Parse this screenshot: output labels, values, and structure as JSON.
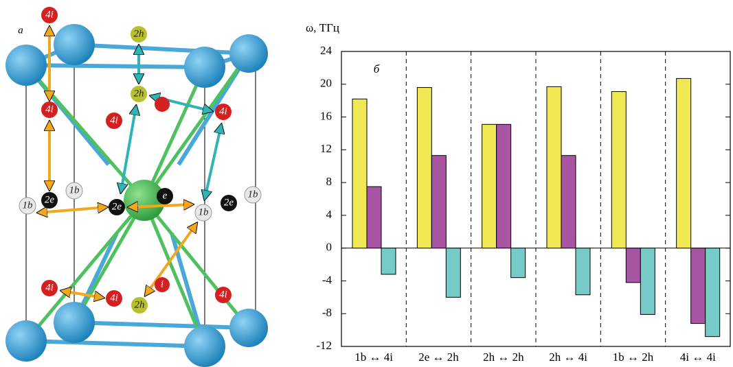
{
  "structure": {
    "panel_label": "a",
    "atoms": [
      "4i",
      "2h",
      "2h",
      "4i",
      "4i",
      "4i",
      "1b",
      "2e",
      "1b",
      "2e",
      "e",
      "1b",
      "2e",
      "1b",
      "4i",
      "4i",
      "i",
      "2h",
      "4i"
    ]
  },
  "chart_data": {
    "type": "bar",
    "title": "б",
    "y_label": "ω, ТГц",
    "categories": [
      "1b ↔ 4i",
      "2e ↔ 2h",
      "2h ↔ 2h",
      "2h ↔ 4i",
      "1b ↔ 2h",
      "4i ↔ 4i"
    ],
    "series": [
      {
        "color": "#f0e854",
        "values": [
          18.2,
          19.6,
          15.1,
          19.7,
          19.1,
          20.7
        ]
      },
      {
        "color": "#a855a3",
        "values": [
          7.5,
          11.3,
          15.1,
          11.3,
          -4.2,
          -9.2
        ]
      },
      {
        "color": "#76cbc8",
        "values": [
          -3.2,
          -6.0,
          -3.6,
          -5.7,
          -8.1,
          -10.8
        ]
      }
    ],
    "ylim": [
      -12,
      24
    ],
    "yticks": [
      -12,
      -8,
      -4,
      0,
      4,
      8,
      12,
      16,
      20,
      24
    ],
    "separators": true
  }
}
